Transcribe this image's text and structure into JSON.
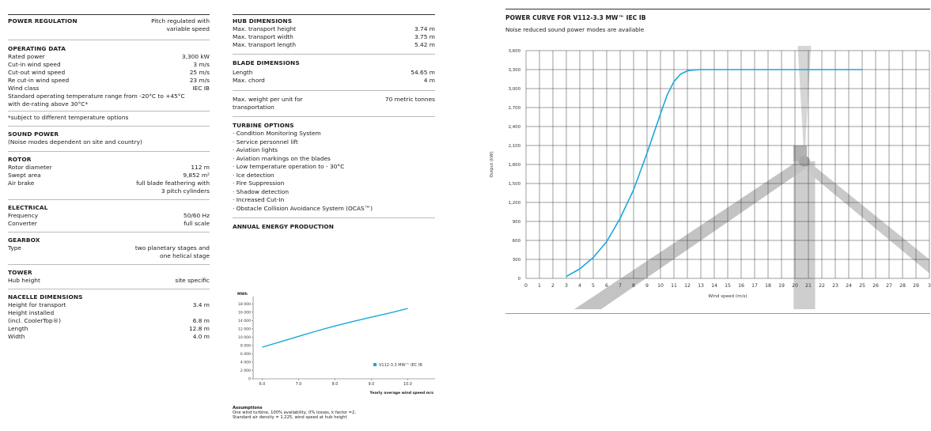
{
  "col1": {
    "power_regulation": {
      "title": "POWER REGULATION",
      "value_line1": "Pitch regulated with",
      "value_line2": "variable speed"
    },
    "operating_data": {
      "title": "OPERATING DATA",
      "rows": [
        {
          "label": "Rated power",
          "value": "3,300 kW"
        },
        {
          "label": "Cut-in wind speed",
          "value": "3 m/s"
        },
        {
          "label": "Cut-out wind speed",
          "value": "25 m/s"
        },
        {
          "label": "Re cut-in wind speed",
          "value": "23 m/s"
        },
        {
          "label": "Wind class",
          "value": "IEC IB"
        }
      ],
      "note1": "Standard operating temperature range from -20°C to +45°C",
      "note2": "with de-rating above 30°C*",
      "footnote": "*subject to different temperature options"
    },
    "sound_power": {
      "title": "SOUND POWER",
      "text": "(Noise modes dependent on site and country)"
    },
    "rotor": {
      "title": "ROTOR",
      "rows": [
        {
          "label": "Rotor diameter",
          "value": "112 m"
        },
        {
          "label": "Swept area",
          "value": "9,852 m²"
        },
        {
          "label": "Air brake",
          "value": "full blade feathering with"
        }
      ],
      "extra": "3 pitch cylinders"
    },
    "electrical": {
      "title": "ELECTRICAL",
      "rows": [
        {
          "label": "Frequency",
          "value": "50/60 Hz"
        },
        {
          "label": "Converter",
          "value": "full scale"
        }
      ]
    },
    "gearbox": {
      "title": "GEARBOX",
      "label": "Type",
      "value1": "two planetary stages and",
      "value2": "one helical stage"
    },
    "tower": {
      "title": "TOWER",
      "label": "Hub height",
      "value": "site specific"
    },
    "nacelle": {
      "title": "NACELLE DIMENSIONS",
      "rows": [
        {
          "label": "Height for transport",
          "value": "3.4 m"
        },
        {
          "label": "Height installed",
          "value": ""
        },
        {
          "label": "(incl. CoolerTop®)",
          "value": "6.8 m"
        },
        {
          "label": "Length",
          "value": "12.8 m"
        },
        {
          "label": "Width",
          "value": "4.0 m"
        }
      ]
    }
  },
  "col2": {
    "hub": {
      "title": "HUB DIMENSIONS",
      "rows": [
        {
          "label": "Max. transport height",
          "value": "3.74 m"
        },
        {
          "label": "Max. transport width",
          "value": "3.75 m"
        },
        {
          "label": "Max. transport length",
          "value": "5.42 m"
        }
      ]
    },
    "blade": {
      "title": "BLADE DIMENSIONS",
      "rows": [
        {
          "label": "Length",
          "value": "54.65 m"
        },
        {
          "label": "Max. chord",
          "value": "4 m"
        }
      ]
    },
    "weight": {
      "label1": "Max. weight per unit for",
      "label2": "transportation",
      "value": "70 metric tonnes"
    },
    "options": {
      "title": "TURBINE OPTIONS",
      "items": [
        "· Condition Monitoring System",
        "· Service personnel lift",
        "· Aviation lights",
        "· Aviation markings on the blades",
        "· Low temperature operation to - 30°C",
        "· Ice detection",
        "· Fire Suppression",
        "· Shadow detection",
        "· Increased Cut-In",
        "· Obstacle Collision Avoidance System (OCAS™)"
      ]
    },
    "aep": {
      "title": "ANNUAL ENERGY PRODUCTION"
    },
    "assumptions": {
      "title": "Assumptions",
      "line1": "One wind turbine, 100% availability, 0% losses, k factor =2,",
      "line2": "Standard air density = 1.225, wind speed at hub height"
    }
  },
  "power_curve": {
    "title": "POWER CURVE FOR V112-3.3 MW™ IEC IB",
    "subtitle": "Noise reduced sound power modes are available"
  },
  "chart_data": [
    {
      "type": "line",
      "title": "ANNUAL ENERGY PRODUCTION",
      "ylabel": "MWh",
      "xlabel": "Yearly average wind speed m/s",
      "x_ticks": [
        "6.0",
        "7.0",
        "8.0",
        "9.0",
        "10.0"
      ],
      "y_ticks": [
        "0",
        "2 000",
        "4 000",
        "6 000",
        "8 000",
        "10 000",
        "12 000",
        "14 000",
        "16 000",
        "18 000"
      ],
      "xlim": [
        5.75,
        10.75
      ],
      "ylim": [
        0,
        19000
      ],
      "color": "#1aa7dc",
      "series": [
        {
          "name": "V112-3.3 MW™ IEC IB",
          "x": [
            6.0,
            6.5,
            7.0,
            7.5,
            8.0,
            8.5,
            9.0,
            9.5,
            10.0
          ],
          "values": [
            7600,
            8900,
            10200,
            11500,
            12700,
            13800,
            14800,
            15800,
            16900
          ]
        }
      ]
    },
    {
      "type": "line",
      "title": "POWER CURVE FOR V112-3.3 MW™ IEC IB",
      "ylabel": "Output (kW)",
      "xlabel": "Wind speed (m/s)",
      "x_ticks": [
        "0",
        "1",
        "2",
        "3",
        "4",
        "5",
        "6",
        "7",
        "8",
        "9",
        "10",
        "11",
        "12",
        "13",
        "14",
        "15",
        "16",
        "17",
        "18",
        "19",
        "20",
        "21",
        "22",
        "23",
        "24",
        "25",
        "26",
        "27",
        "28",
        "29",
        "3"
      ],
      "y_ticks": [
        "0",
        "300",
        "600",
        "900",
        "1,200",
        "1,500",
        "1,800",
        "2,100",
        "2,400",
        "2,700",
        "3,000",
        "3,300",
        "3,600"
      ],
      "xlim": [
        0,
        30
      ],
      "ylim": [
        0,
        3600
      ],
      "grid": true,
      "color": "#1aa7dc",
      "series": [
        {
          "name": "",
          "x": [
            3,
            4,
            5,
            6,
            7,
            8,
            9,
            10,
            10.5,
            11,
            11.5,
            12,
            12.5,
            13,
            14,
            15,
            16,
            17,
            18,
            19,
            20,
            21,
            22,
            23,
            24,
            25
          ],
          "values": [
            30,
            150,
            330,
            580,
            950,
            1400,
            1980,
            2600,
            2900,
            3110,
            3230,
            3280,
            3295,
            3300,
            3300,
            3300,
            3300,
            3300,
            3300,
            3300,
            3300,
            3300,
            3300,
            3300,
            3300,
            3300
          ]
        }
      ]
    }
  ]
}
